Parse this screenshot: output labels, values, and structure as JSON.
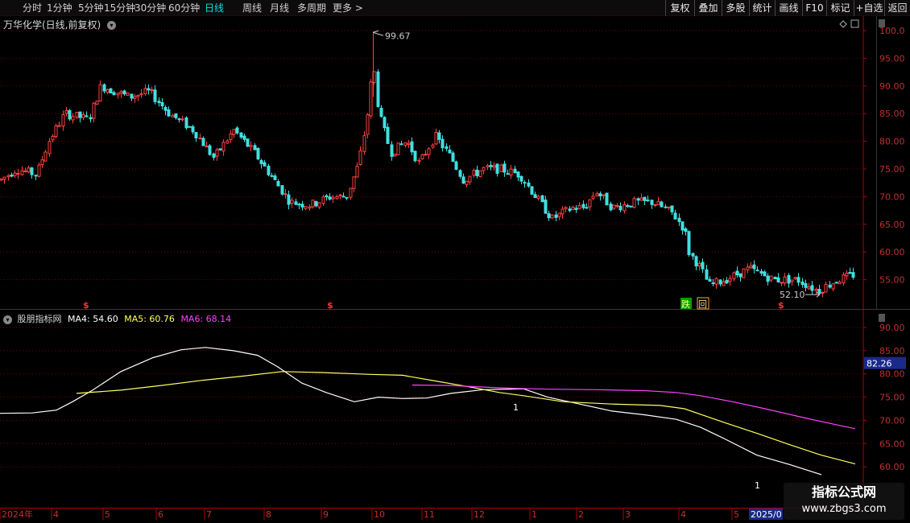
{
  "toolbar": {
    "periods": [
      "分时",
      "1分钟",
      "5分钟",
      "15分钟",
      "30分钟",
      "60分钟",
      "日线",
      "周线",
      "月线",
      "多周期",
      "更多"
    ],
    "active_period": "日线",
    "right_buttons": [
      "复权",
      "叠加",
      "多股",
      "统计",
      "画线",
      "F10",
      "标记",
      "+自选",
      "返回"
    ]
  },
  "main_panel": {
    "title": "万华化学(日线,前复权)",
    "y_ticks": [
      "100.0",
      "95.00",
      "90.00",
      "85.00",
      "80.00",
      "75.00",
      "70.00",
      "65.00",
      "60.00",
      "55.00"
    ],
    "high_label": "99.67",
    "low_label": "52.10",
    "s_markers": [
      "$",
      "$",
      "$"
    ],
    "tags": [
      "跌",
      "回"
    ]
  },
  "indicator_panel": {
    "name": "股朋指标网",
    "ma4_label": "MA4: 54.60",
    "ma5_label": "MA5: 60.76",
    "ma6_label": "MA6: 68.14",
    "y_ticks": [
      "90.00",
      "85.00",
      "80.00",
      "75.00",
      "70.00",
      "65.00",
      "60.00"
    ],
    "current_value": "82.26",
    "annotations": [
      "1",
      "1"
    ]
  },
  "x_axis": {
    "labels": [
      "2024年",
      "4",
      "5",
      "6",
      "7",
      "8",
      "9",
      "10",
      "11",
      "12",
      "1",
      "2",
      "3",
      "4",
      "5"
    ],
    "highlight_label": "2025/0"
  },
  "colors": {
    "up": "#ff4040",
    "down": "#40e0e0",
    "ma4": "#ffffff",
    "ma5": "#ffff60",
    "ma6": "#ff40ff",
    "axis": "#b00000"
  },
  "watermark": {
    "line1": "指标公式网",
    "line2": "www.zbgs3.com"
  }
}
